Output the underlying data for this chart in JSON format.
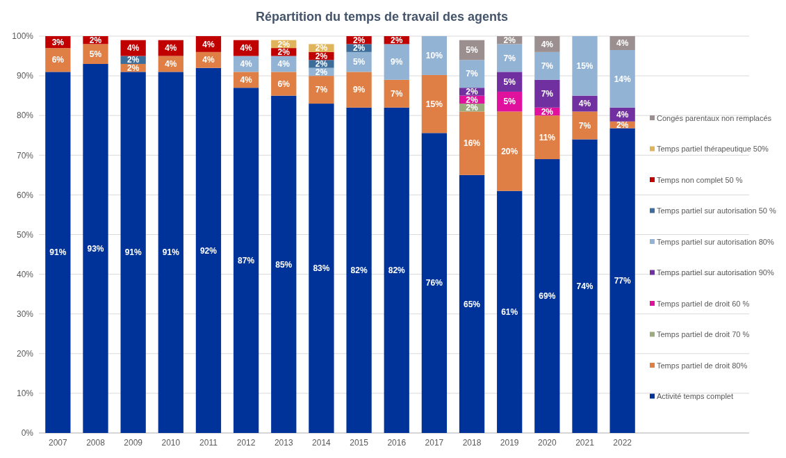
{
  "chart_data": {
    "type": "bar",
    "title": "Répartition du temps de travail des agents",
    "stacked": true,
    "grid": "y",
    "legend": "right",
    "categories": [
      "2007",
      "2008",
      "2009",
      "2010",
      "2011",
      "2012",
      "2013",
      "2014",
      "2015",
      "2016",
      "2017",
      "2018",
      "2019",
      "2020",
      "2021",
      "2022"
    ],
    "ylim": [
      0,
      100
    ],
    "yticks": [
      {
        "value": 0,
        "label": "0%"
      },
      {
        "value": 10,
        "label": "10%"
      },
      {
        "value": 20,
        "label": "20%"
      },
      {
        "value": 30,
        "label": "30%"
      },
      {
        "value": 40,
        "label": "40%"
      },
      {
        "value": 50,
        "label": "50%"
      },
      {
        "value": 60,
        "label": "60%"
      },
      {
        "value": 70,
        "label": "70%"
      },
      {
        "value": 80,
        "label": "80%"
      },
      {
        "value": 90,
        "label": "90%"
      },
      {
        "value": 100,
        "label": "100%"
      }
    ],
    "series": [
      {
        "name": "Activité temps complet",
        "color": "#003399",
        "values": [
          91,
          93,
          91,
          91,
          92,
          87,
          85,
          83,
          82,
          82,
          75.6,
          65,
          61,
          69,
          74,
          76.8
        ],
        "value_labels": [
          "91%",
          "93%",
          "91%",
          "91%",
          "92%",
          "87%",
          "85%",
          "83%",
          "82%",
          "82%",
          "76%",
          "65%",
          "61%",
          "69%",
          "74%",
          "77%"
        ]
      },
      {
        "name": "Temps partiel de droit 80%",
        "color": "#e07f45",
        "values": [
          6,
          5,
          2,
          4,
          4,
          4,
          6,
          7,
          9,
          7,
          14.6,
          16,
          20,
          11,
          7,
          1.7
        ],
        "value_labels": [
          "6%",
          "5%",
          "2%",
          "4%",
          "4%",
          "4%",
          "6%",
          "7%",
          "9%",
          "7%",
          "15%",
          "16%",
          "20%",
          "11%",
          "7%",
          "2%"
        ]
      },
      {
        "name": "Temps partiel de droit 70 %",
        "color": "#9bab7f",
        "values": [
          null,
          null,
          null,
          null,
          null,
          null,
          null,
          null,
          null,
          null,
          null,
          2,
          null,
          null,
          null,
          null
        ],
        "value_labels": [
          null,
          null,
          null,
          null,
          null,
          null,
          null,
          null,
          null,
          null,
          null,
          "2%",
          null,
          null,
          null,
          null
        ]
      },
      {
        "name": "Temps partiel de droit 60 %",
        "color": "#e0119d",
        "values": [
          null,
          null,
          null,
          null,
          null,
          null,
          null,
          null,
          null,
          null,
          null,
          2,
          5,
          2,
          null,
          null
        ],
        "value_labels": [
          null,
          null,
          null,
          null,
          null,
          null,
          null,
          null,
          null,
          null,
          null,
          "2%",
          "5%",
          "2%",
          null,
          null
        ]
      },
      {
        "name": "Temps partiel sur autorisation 90%",
        "color": "#7030a0",
        "values": [
          null,
          null,
          null,
          null,
          null,
          null,
          null,
          null,
          null,
          null,
          null,
          2,
          5,
          7,
          4,
          3.5
        ],
        "value_labels": [
          null,
          null,
          null,
          null,
          null,
          null,
          null,
          null,
          null,
          null,
          null,
          "2%",
          "5%",
          "7%",
          "4%",
          "4%"
        ]
      },
      {
        "name": "Temps partiel sur autorisation 80%",
        "color": "#93b3d5",
        "values": [
          null,
          null,
          null,
          null,
          null,
          4,
          4,
          2,
          5,
          9,
          9.8,
          7,
          7,
          7,
          15,
          14.5
        ],
        "value_labels": [
          null,
          null,
          null,
          null,
          null,
          "4%",
          "4%",
          "2%",
          "5%",
          "9%",
          "10%",
          "7%",
          "7%",
          "7%",
          "15%",
          "14%"
        ]
      },
      {
        "name": "Temps partiel sur autorisation 50 %",
        "color": "#3d6e9b",
        "values": [
          null,
          null,
          2,
          null,
          null,
          null,
          null,
          2,
          2,
          null,
          null,
          null,
          null,
          null,
          null,
          null
        ],
        "value_labels": [
          null,
          null,
          "2%",
          null,
          null,
          null,
          null,
          "2%",
          "2%",
          null,
          null,
          null,
          null,
          null,
          null,
          null
        ]
      },
      {
        "name": "Temps non complet 50 %",
        "color": "#c00000",
        "values": [
          3,
          2,
          4,
          4,
          4,
          4,
          2,
          2,
          2,
          2,
          null,
          null,
          null,
          null,
          null,
          null
        ],
        "value_labels": [
          "3%",
          "2%",
          "4%",
          "4%",
          "4%",
          "4%",
          "2%",
          "2%",
          "2%",
          "2%",
          null,
          null,
          null,
          null,
          null,
          null
        ]
      },
      {
        "name": "Temps partiel thérapeutique 50%",
        "color": "#e0b45a",
        "values": [
          null,
          null,
          null,
          null,
          null,
          null,
          2,
          2,
          null,
          null,
          null,
          null,
          null,
          null,
          null,
          null
        ],
        "value_labels": [
          null,
          null,
          null,
          null,
          null,
          null,
          "2%",
          "2%",
          null,
          null,
          null,
          null,
          null,
          null,
          null,
          null
        ]
      },
      {
        "name": "Congés parentaux non remplacés",
        "color": "#9b8f8f",
        "values": [
          null,
          null,
          null,
          null,
          null,
          null,
          null,
          null,
          null,
          null,
          null,
          5,
          2,
          4,
          null,
          3.5
        ],
        "value_labels": [
          null,
          null,
          null,
          null,
          null,
          null,
          null,
          null,
          null,
          null,
          null,
          "5%",
          "2%",
          "4%",
          null,
          "4%"
        ]
      }
    ]
  }
}
